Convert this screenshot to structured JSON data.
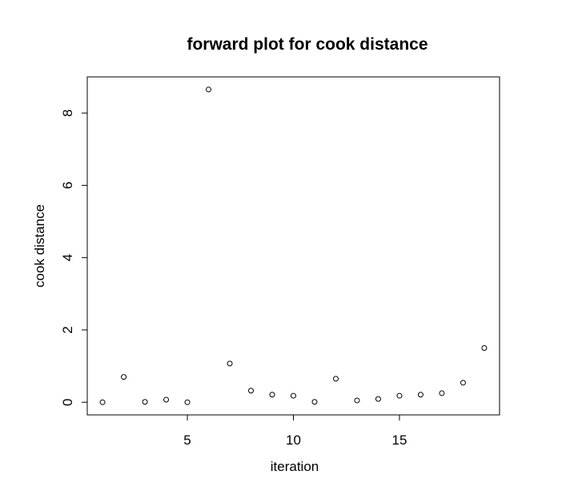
{
  "chart_data": {
    "type": "scatter",
    "title": "forward plot for cook distance",
    "xlabel": "iteration",
    "ylabel": "cook distance",
    "xlim": [
      0.28,
      19.72
    ],
    "ylim": [
      -0.35,
      9.0
    ],
    "xticks": [
      5,
      10,
      15
    ],
    "yticks": [
      0,
      2,
      4,
      6,
      8
    ],
    "grid": false,
    "legend": "none",
    "point_style": "open-circle",
    "x": [
      1,
      2,
      3,
      4,
      5,
      6,
      7,
      8,
      9,
      10,
      11,
      12,
      13,
      14,
      15,
      16,
      17,
      18,
      19
    ],
    "y": [
      0.0,
      0.7,
      0.01,
      0.07,
      0.0,
      8.65,
      1.07,
      0.32,
      0.21,
      0.18,
      0.01,
      0.65,
      0.05,
      0.09,
      0.18,
      0.21,
      0.25,
      0.54,
      1.5
    ]
  }
}
